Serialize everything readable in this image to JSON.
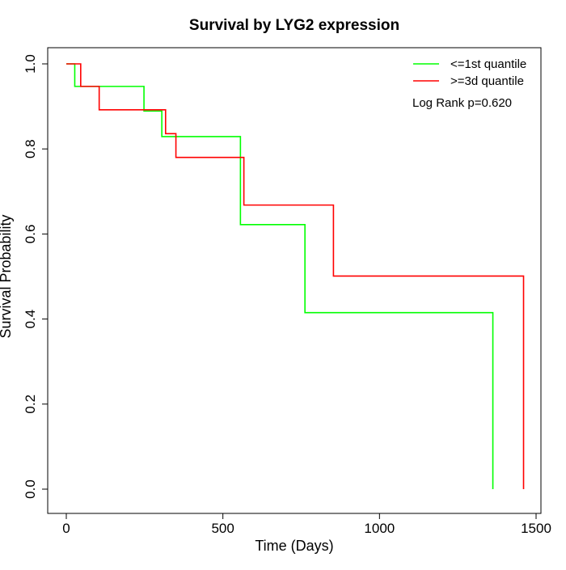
{
  "chart_data": {
    "type": "line",
    "subtype": "kaplan-meier-step",
    "title": "Survival by LYG2 expression",
    "xlabel": "Time (Days)",
    "ylabel": "Survival Probability",
    "xlim": [
      0,
      1500
    ],
    "ylim": [
      0,
      1.0
    ],
    "xticks": [
      0,
      500,
      1000,
      1500
    ],
    "yticks": [
      0.0,
      0.2,
      0.4,
      0.6,
      0.8,
      1.0
    ],
    "xtick_labels": [
      "0",
      "500",
      "1000",
      "1500"
    ],
    "ytick_labels": [
      "0.0",
      "0.2",
      "0.4",
      "0.6",
      "0.8",
      "1.0"
    ],
    "grid": false,
    "legend_position": "top-right",
    "annotation": "Log Rank p=0.620",
    "series": [
      {
        "name": "<=1st quantile",
        "color": "#00ff00",
        "x": [
          0,
          27,
          248,
          305,
          556,
          762,
          1362
        ],
        "y": [
          1.0,
          0.947,
          0.889,
          0.829,
          0.622,
          0.415,
          0.0
        ]
      },
      {
        "name": ">=3d quantile",
        "color": "#ff0000",
        "x": [
          0,
          46,
          105,
          317,
          350,
          567,
          853,
          1460
        ],
        "y": [
          1.0,
          0.947,
          0.892,
          0.836,
          0.78,
          0.668,
          0.501,
          0.0
        ]
      }
    ]
  }
}
